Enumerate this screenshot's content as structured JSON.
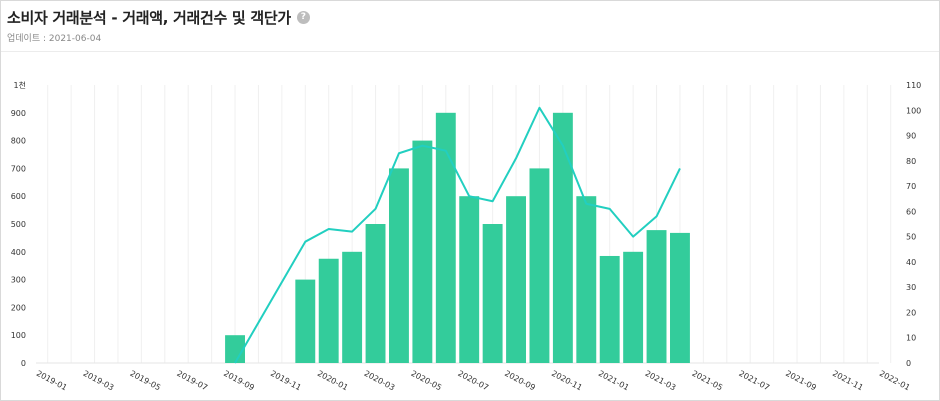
{
  "header": {
    "title": "소비자 거래분석 - 거래액, 거래건수 및 객단가",
    "help_icon": "help-icon",
    "updated": "업데이트 : 2021-06-04"
  },
  "chart_data": {
    "type": "bar+line",
    "x": [
      "2019-01",
      "2019-02",
      "2019-03",
      "2019-04",
      "2019-05",
      "2019-06",
      "2019-07",
      "2019-08",
      "2019-09",
      "2019-10",
      "2019-11",
      "2019-12",
      "2020-01",
      "2020-02",
      "2020-03",
      "2020-04",
      "2020-05",
      "2020-06",
      "2020-07",
      "2020-08",
      "2020-09",
      "2020-10",
      "2020-11",
      "2020-12",
      "2021-01",
      "2021-02",
      "2021-03",
      "2021-04",
      "2021-05",
      "2021-06",
      "2021-07",
      "2021-08",
      "2021-09",
      "2021-10",
      "2021-11",
      "2021-12",
      "2022-01"
    ],
    "x_ticks": [
      "2019-01",
      "2019-03",
      "2019-05",
      "2019-07",
      "2019-09",
      "2019-11",
      "2020-01",
      "2020-03",
      "2020-05",
      "2020-07",
      "2020-09",
      "2020-11",
      "2021-01",
      "2021-03",
      "2021-05",
      "2021-07",
      "2021-09",
      "2021-11",
      "2022-01"
    ],
    "left_axis": {
      "ylim": [
        0,
        1000
      ],
      "ticks": [
        "0",
        "100",
        "200",
        "300",
        "400",
        "500",
        "600",
        "700",
        "800",
        "900",
        "1천"
      ]
    },
    "right_axis": {
      "ylim": [
        0,
        110
      ],
      "ticks": [
        "0",
        "10",
        "20",
        "30",
        "40",
        "50",
        "60",
        "70",
        "80",
        "90",
        "100",
        "110"
      ]
    },
    "bar_color": "#33cc9b",
    "line_color": "#22cfc0",
    "bars": {
      "x": [
        "2019-09",
        "2019-12",
        "2020-01",
        "2020-02",
        "2020-03",
        "2020-04",
        "2020-05",
        "2020-06",
        "2020-07",
        "2020-08",
        "2020-09",
        "2020-10",
        "2020-11",
        "2020-12",
        "2021-01",
        "2021-02",
        "2021-03",
        "2021-04"
      ],
      "values": [
        100,
        300,
        375,
        400,
        500,
        700,
        800,
        900,
        600,
        500,
        600,
        700,
        900,
        600,
        385,
        400,
        478,
        468
      ]
    },
    "line": {
      "x": [
        "2019-09",
        "2019-12",
        "2020-01",
        "2020-02",
        "2020-03",
        "2020-04",
        "2020-05",
        "2020-06",
        "2020-07",
        "2020-08",
        "2020-09",
        "2020-10",
        "2020-11",
        "2020-12",
        "2021-01",
        "2021-02",
        "2021-03",
        "2021-04"
      ],
      "values": [
        0,
        48,
        53,
        52,
        61,
        83,
        86,
        84,
        66,
        64,
        81,
        101,
        86,
        63,
        61,
        50,
        58,
        77
      ]
    },
    "grid": "vertical"
  }
}
